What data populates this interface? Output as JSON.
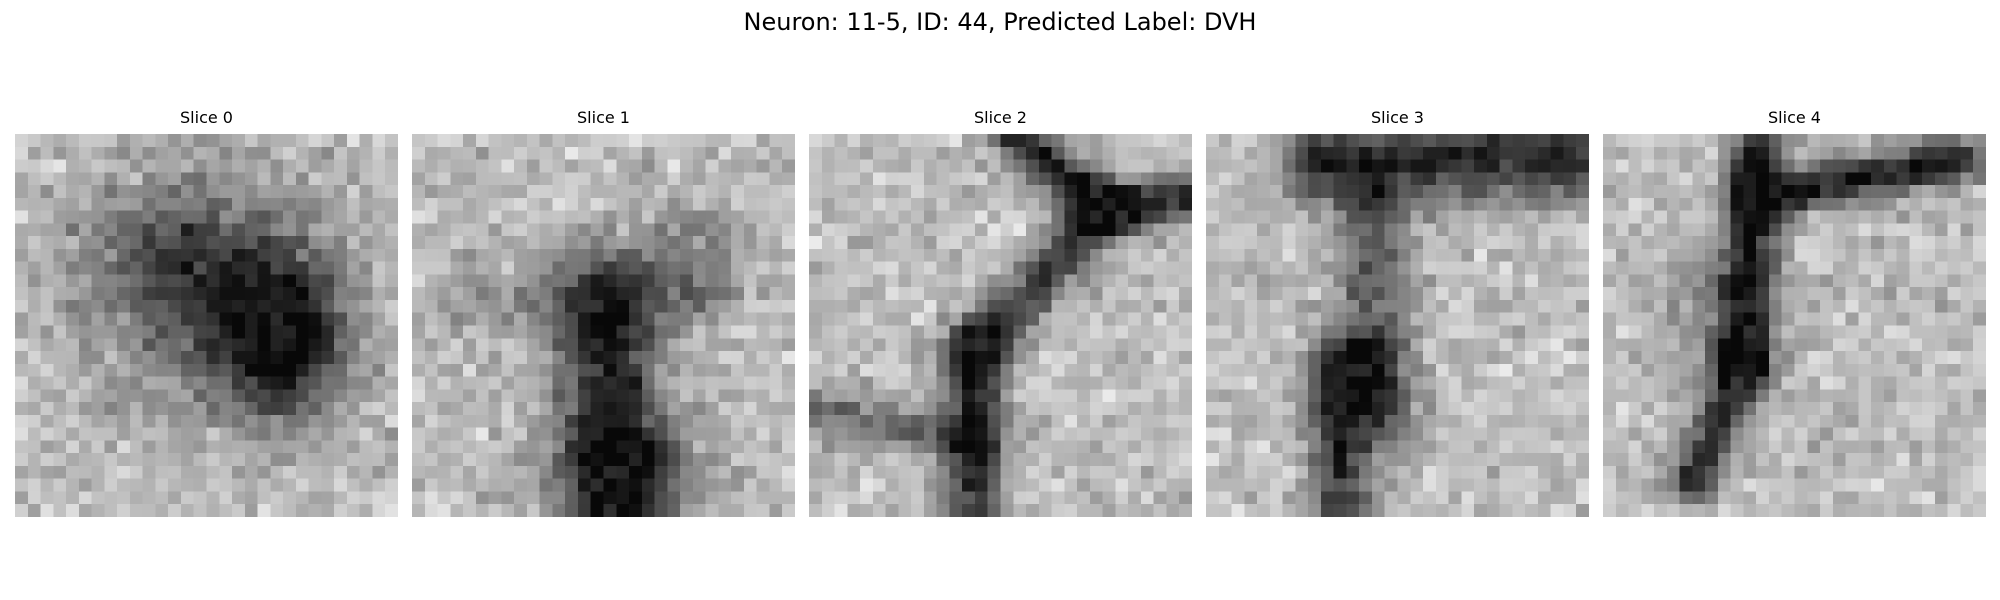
{
  "figure": {
    "suptitle": "Neuron: 11-5, ID: 44, Predicted Label: DVH",
    "colormap": "grayscale",
    "panels": [
      {
        "title": "Slice 0",
        "pattern": "dark-blob-center-right"
      },
      {
        "title": "Slice 1",
        "pattern": "dark-vertical-lower-center"
      },
      {
        "title": "Slice 2",
        "pattern": "dark-branch-top-right-to-bottom-left"
      },
      {
        "title": "Slice 3",
        "pattern": "dark-top-band-and-lower-left-streak"
      },
      {
        "title": "Slice 4",
        "pattern": "dark-branch-top-to-bottom-left"
      }
    ]
  }
}
